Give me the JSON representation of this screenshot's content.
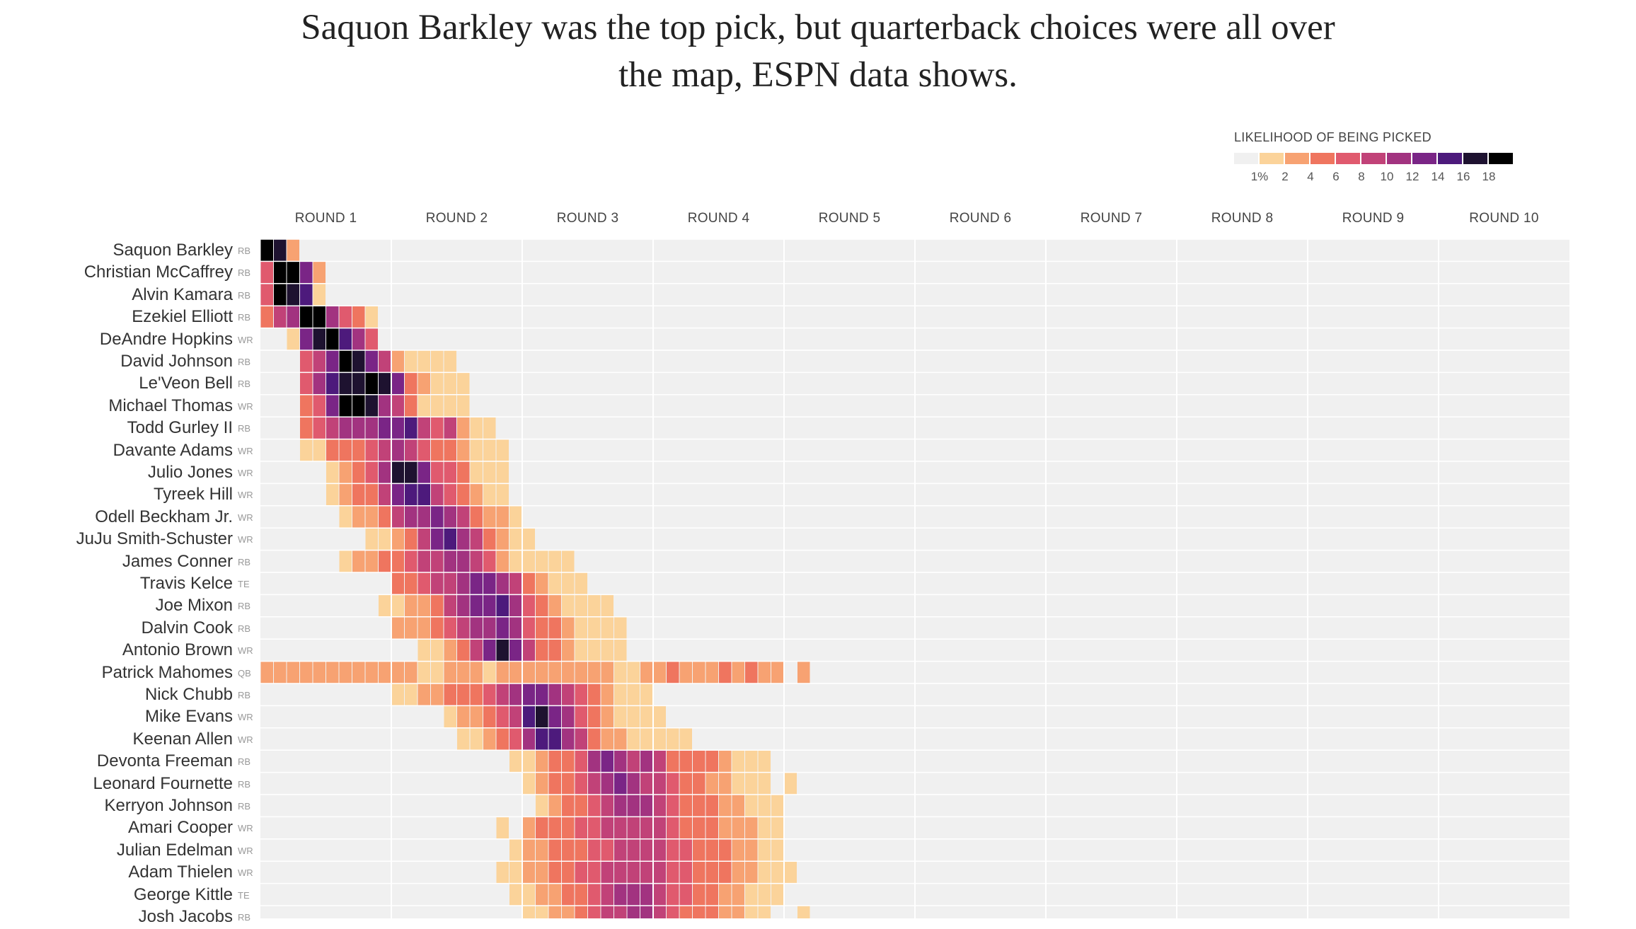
{
  "headline": {
    "line1": "Saquon Barkley was the top pick, but quarterback choices were all over",
    "line2": "the map, ESPN data shows."
  },
  "colors": {
    "empty": "#f0f0f0",
    "scale": [
      "#f0f0f0",
      "#fbd39a",
      "#f7a272",
      "#ef755f",
      "#e05a6e",
      "#c14278",
      "#a23380",
      "#7a2586",
      "#4d1a7c",
      "#1e1230",
      "#000000"
    ]
  },
  "chart_data": {
    "type": "heatmap",
    "title": "",
    "legend": {
      "title": "LIKELIHOOD OF BEING PICKED",
      "ticks": [
        "1%",
        "2",
        "4",
        "6",
        "8",
        "10",
        "12",
        "14",
        "16",
        "18"
      ],
      "placement": "top-right"
    },
    "rounds": [
      "ROUND 1",
      "ROUND 2",
      "ROUND 3",
      "ROUND 4",
      "ROUND 5",
      "ROUND 6",
      "ROUND 7",
      "ROUND 8",
      "ROUND 9",
      "ROUND 10"
    ],
    "picks_per_round": 10,
    "players": [
      {
        "name": "Saquon Barkley",
        "pos": "RB"
      },
      {
        "name": "Christian McCaffrey",
        "pos": "RB"
      },
      {
        "name": "Alvin Kamara",
        "pos": "RB"
      },
      {
        "name": "Ezekiel Elliott",
        "pos": "RB"
      },
      {
        "name": "DeAndre Hopkins",
        "pos": "WR"
      },
      {
        "name": "David Johnson",
        "pos": "RB"
      },
      {
        "name": "Le'Veon Bell",
        "pos": "RB"
      },
      {
        "name": "Michael Thomas",
        "pos": "WR"
      },
      {
        "name": "Todd Gurley II",
        "pos": "RB"
      },
      {
        "name": "Davante Adams",
        "pos": "WR"
      },
      {
        "name": "Julio Jones",
        "pos": "WR"
      },
      {
        "name": "Tyreek Hill",
        "pos": "WR"
      },
      {
        "name": "Odell Beckham Jr.",
        "pos": "WR"
      },
      {
        "name": "JuJu Smith-Schuster",
        "pos": "WR"
      },
      {
        "name": "James Conner",
        "pos": "RB"
      },
      {
        "name": "Travis Kelce",
        "pos": "TE"
      },
      {
        "name": "Joe Mixon",
        "pos": "RB"
      },
      {
        "name": "Dalvin Cook",
        "pos": "RB"
      },
      {
        "name": "Antonio Brown",
        "pos": "WR"
      },
      {
        "name": "Patrick Mahomes",
        "pos": "QB"
      },
      {
        "name": "Nick Chubb",
        "pos": "RB"
      },
      {
        "name": "Mike Evans",
        "pos": "WR"
      },
      {
        "name": "Keenan Allen",
        "pos": "WR"
      },
      {
        "name": "Devonta Freeman",
        "pos": "RB"
      },
      {
        "name": "Leonard Fournette",
        "pos": "RB"
      },
      {
        "name": "Kerryon Johnson",
        "pos": "RB"
      },
      {
        "name": "Amari Cooper",
        "pos": "WR"
      },
      {
        "name": "Julian Edelman",
        "pos": "WR"
      },
      {
        "name": "Adam Thielen",
        "pos": "WR"
      },
      {
        "name": "George Kittle",
        "pos": "TE"
      },
      {
        "name": "Josh Jacobs",
        "pos": "RB"
      }
    ],
    "value_scale": "likelihood level 0-10 (0 = under 1%, 10 = 18%+)",
    "cells": [
      [
        10,
        9,
        2
      ],
      [
        4,
        10,
        10,
        7,
        2
      ],
      [
        4,
        10,
        9,
        8,
        1
      ],
      [
        3,
        5,
        6,
        10,
        10,
        6,
        4,
        3,
        1
      ],
      [
        0,
        0,
        1,
        7,
        9,
        10,
        8,
        6,
        4
      ],
      [
        0,
        0,
        0,
        4,
        5,
        7,
        10,
        9,
        7,
        5,
        2,
        1,
        1,
        1,
        1
      ],
      [
        0,
        0,
        0,
        4,
        6,
        8,
        9,
        9,
        10,
        9,
        7,
        3,
        2,
        1,
        1,
        1
      ],
      [
        0,
        0,
        0,
        3,
        4,
        7,
        10,
        10,
        9,
        6,
        5,
        3,
        1,
        1,
        1,
        1
      ],
      [
        0,
        0,
        0,
        3,
        4,
        5,
        6,
        6,
        6,
        7,
        7,
        8,
        5,
        4,
        5,
        2,
        1,
        1
      ],
      [
        0,
        0,
        0,
        1,
        1,
        3,
        3,
        3,
        4,
        5,
        6,
        5,
        4,
        3,
        3,
        2,
        1,
        1,
        1
      ],
      [
        0,
        0,
        0,
        0,
        0,
        1,
        2,
        3,
        4,
        6,
        9,
        9,
        7,
        4,
        4,
        3,
        1,
        1,
        1
      ],
      [
        0,
        0,
        0,
        0,
        0,
        1,
        2,
        3,
        3,
        5,
        7,
        8,
        8,
        5,
        4,
        3,
        2,
        1,
        1
      ],
      [
        0,
        0,
        0,
        0,
        0,
        0,
        1,
        2,
        2,
        3,
        5,
        6,
        6,
        7,
        6,
        5,
        3,
        2,
        2,
        1
      ],
      [
        0,
        0,
        0,
        0,
        0,
        0,
        0,
        0,
        1,
        1,
        2,
        3,
        5,
        7,
        8,
        6,
        5,
        3,
        2,
        1,
        1
      ],
      [
        0,
        0,
        0,
        0,
        0,
        0,
        1,
        2,
        2,
        3,
        3,
        4,
        5,
        5,
        6,
        6,
        5,
        4,
        2,
        1,
        1,
        1,
        1,
        1
      ],
      [
        0,
        0,
        0,
        0,
        0,
        0,
        0,
        0,
        0,
        0,
        3,
        3,
        4,
        5,
        5,
        6,
        7,
        7,
        6,
        5,
        3,
        2,
        1,
        1,
        1
      ],
      [
        0,
        0,
        0,
        0,
        0,
        0,
        0,
        0,
        0,
        1,
        1,
        2,
        2,
        3,
        5,
        6,
        7,
        7,
        8,
        6,
        4,
        3,
        2,
        1,
        1,
        1,
        1
      ],
      [
        0,
        0,
        0,
        0,
        0,
        0,
        0,
        0,
        0,
        0,
        2,
        2,
        2,
        3,
        4,
        5,
        6,
        6,
        7,
        6,
        4,
        3,
        3,
        2,
        1,
        1,
        1,
        1
      ],
      [
        0,
        0,
        0,
        0,
        0,
        0,
        0,
        0,
        0,
        0,
        0,
        0,
        1,
        1,
        2,
        3,
        5,
        7,
        9,
        7,
        5,
        3,
        3,
        2,
        1,
        1,
        1,
        1
      ],
      [
        2,
        2,
        2,
        2,
        2,
        2,
        2,
        2,
        2,
        2,
        2,
        2,
        1,
        1,
        2,
        2,
        2,
        1,
        2,
        2,
        2,
        2,
        2,
        2,
        2,
        2,
        2,
        1,
        1,
        2,
        2,
        3,
        2,
        2,
        2,
        3,
        2,
        3,
        2,
        2,
        0,
        2
      ],
      [
        0,
        0,
        0,
        0,
        0,
        0,
        0,
        0,
        0,
        0,
        1,
        1,
        2,
        2,
        3,
        3,
        3,
        4,
        5,
        6,
        7,
        7,
        6,
        5,
        4,
        3,
        2,
        1,
        1,
        1
      ],
      [
        0,
        0,
        0,
        0,
        0,
        0,
        0,
        0,
        0,
        0,
        0,
        0,
        0,
        0,
        1,
        2,
        2,
        3,
        4,
        5,
        8,
        9,
        7,
        6,
        4,
        3,
        2,
        1,
        1,
        1,
        1
      ],
      [
        0,
        0,
        0,
        0,
        0,
        0,
        0,
        0,
        0,
        0,
        0,
        0,
        0,
        0,
        0,
        1,
        1,
        2,
        3,
        4,
        6,
        8,
        8,
        6,
        5,
        3,
        2,
        2,
        1,
        1,
        1,
        1,
        1
      ],
      [
        0,
        0,
        0,
        0,
        0,
        0,
        0,
        0,
        0,
        0,
        0,
        0,
        0,
        0,
        0,
        0,
        0,
        0,
        0,
        1,
        1,
        2,
        3,
        3,
        4,
        6,
        7,
        6,
        5,
        6,
        5,
        3,
        3,
        3,
        3,
        2,
        1,
        1,
        1
      ],
      [
        0,
        0,
        0,
        0,
        0,
        0,
        0,
        0,
        0,
        0,
        0,
        0,
        0,
        0,
        0,
        0,
        0,
        0,
        0,
        0,
        1,
        2,
        3,
        3,
        4,
        5,
        6,
        7,
        6,
        5,
        5,
        4,
        3,
        3,
        2,
        2,
        1,
        1,
        1,
        0,
        1
      ],
      [
        0,
        0,
        0,
        0,
        0,
        0,
        0,
        0,
        0,
        0,
        0,
        0,
        0,
        0,
        0,
        0,
        0,
        0,
        0,
        0,
        0,
        1,
        2,
        3,
        3,
        4,
        5,
        6,
        6,
        6,
        5,
        4,
        3,
        3,
        3,
        2,
        2,
        1,
        1,
        1
      ],
      [
        0,
        0,
        0,
        0,
        0,
        0,
        0,
        0,
        0,
        0,
        0,
        0,
        0,
        0,
        0,
        0,
        0,
        0,
        1,
        0,
        2,
        3,
        3,
        3,
        4,
        4,
        5,
        5,
        5,
        5,
        5,
        4,
        3,
        3,
        3,
        2,
        2,
        2,
        1,
        1
      ],
      [
        0,
        0,
        0,
        0,
        0,
        0,
        0,
        0,
        0,
        0,
        0,
        0,
        0,
        0,
        0,
        0,
        0,
        0,
        0,
        1,
        2,
        2,
        3,
        3,
        3,
        4,
        4,
        5,
        5,
        5,
        5,
        4,
        4,
        3,
        3,
        3,
        2,
        2,
        1,
        1
      ],
      [
        0,
        0,
        0,
        0,
        0,
        0,
        0,
        0,
        0,
        0,
        0,
        0,
        0,
        0,
        0,
        0,
        0,
        0,
        1,
        1,
        2,
        2,
        3,
        3,
        4,
        4,
        5,
        5,
        5,
        5,
        5,
        4,
        4,
        3,
        3,
        3,
        2,
        2,
        1,
        1,
        1
      ],
      [
        0,
        0,
        0,
        0,
        0,
        0,
        0,
        0,
        0,
        0,
        0,
        0,
        0,
        0,
        0,
        0,
        0,
        0,
        0,
        1,
        1,
        2,
        2,
        3,
        3,
        4,
        5,
        6,
        6,
        6,
        5,
        4,
        4,
        3,
        3,
        2,
        2,
        1,
        1,
        1
      ],
      [
        0,
        0,
        0,
        0,
        0,
        0,
        0,
        0,
        0,
        0,
        0,
        0,
        0,
        0,
        0,
        0,
        0,
        0,
        0,
        0,
        1,
        1,
        2,
        2,
        3,
        4,
        5,
        5,
        6,
        6,
        5,
        4,
        3,
        3,
        3,
        2,
        2,
        1,
        1,
        0,
        0,
        1
      ]
    ]
  }
}
